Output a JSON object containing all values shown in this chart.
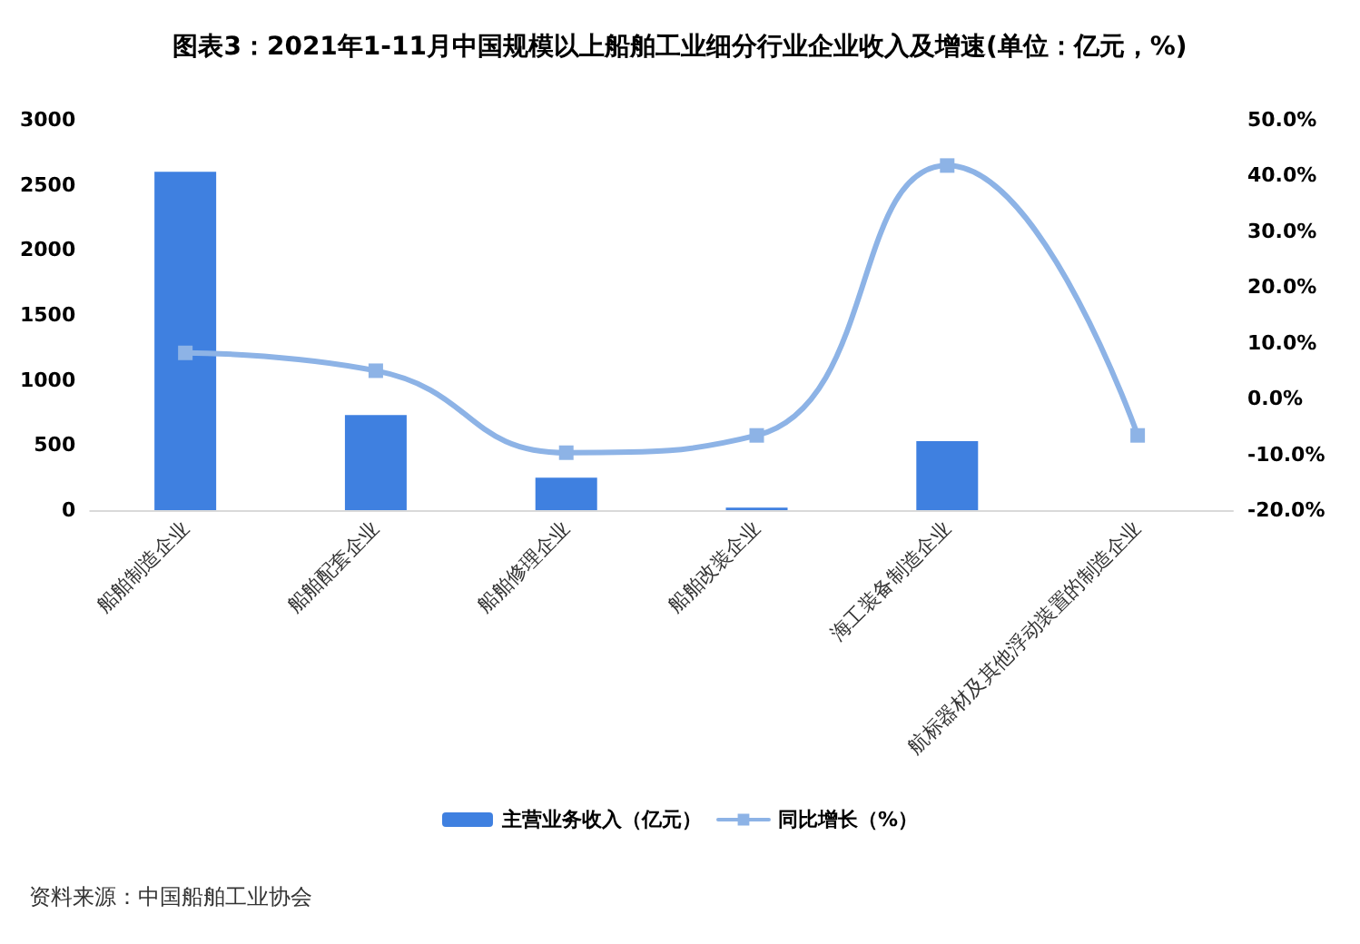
{
  "chart_data": {
    "type": "bar",
    "title": "图表3：2021年1-11月中国规模以上船舶工业细分行业企业收入及增速(单位：亿元，%)",
    "categories": [
      "船舶制造企业",
      "船舶配套企业",
      "船舶修理企业",
      "船舶改装企业",
      "海工装备制造企业",
      "航标器材及其他浮动装置的制造企业"
    ],
    "series": [
      {
        "name": "主营业务收入（亿元）",
        "color": "#3f80e0",
        "values": [
          2600,
          730,
          250,
          20,
          530,
          0
        ]
      },
      {
        "name": "同比增长（%）",
        "type": "line",
        "axis": "y2",
        "color": "#8db3e6",
        "marker": "square",
        "values": [
          8.2,
          5.0,
          -9.7,
          -6.6,
          41.8,
          -6.6
        ]
      }
    ],
    "ylim": [
      0,
      3000
    ],
    "yticks": [
      0,
      500,
      1000,
      1500,
      2000,
      2500,
      3000
    ],
    "y2lim": [
      -20,
      50
    ],
    "y2ticks": [
      {
        "value": -20,
        "label": "-20.0%"
      },
      {
        "value": -10,
        "label": "-10.0%"
      },
      {
        "value": 0,
        "label": "0.0%"
      },
      {
        "value": 10,
        "label": "10.0%"
      },
      {
        "value": 20,
        "label": "20.0%"
      },
      {
        "value": 30,
        "label": "30.0%"
      },
      {
        "value": 40,
        "label": "40.0%"
      },
      {
        "value": 50,
        "label": "50.0%"
      }
    ],
    "grid": false,
    "legend": "bottom",
    "annotations": [
      "资料来源：中国船舶工业协会"
    ]
  }
}
